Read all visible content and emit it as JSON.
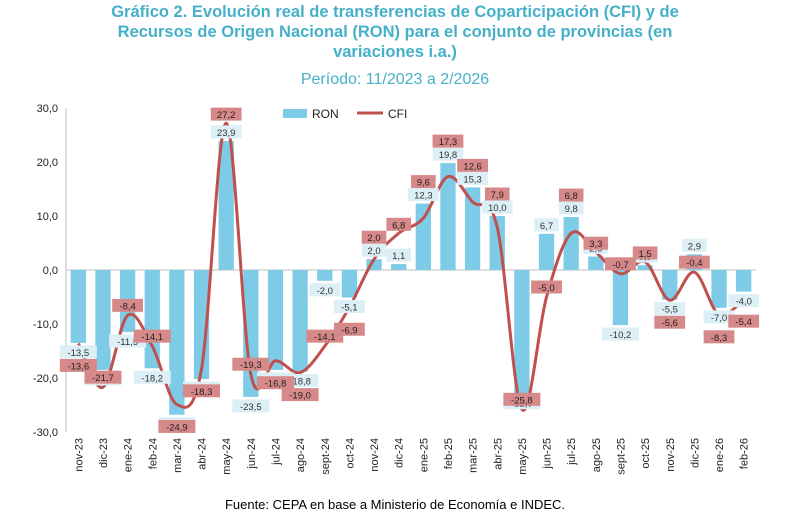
{
  "title_lines": [
    "Gráfico 2. Evolución real de transferencias de Coparticipación (CFI) y de",
    "Recursos de Origen Nacional (RON) para el conjunto de provincias (en",
    "variaciones i.a.)"
  ],
  "subtitle": "Período: 11/2023 a 2/2026",
  "source": "Fuente: CEPA en base a Ministerio de Economía e INDEC.",
  "colors": {
    "ron": "#7dcbe6",
    "cfi": "#c0504d",
    "title": "#45b0c8",
    "ron_label_bg": "#dcefF7",
    "cfi_label_bg": "#d7898a"
  },
  "chart_data": {
    "type": "bar",
    "categories": [
      "nov-23",
      "dic-23",
      "ene-24",
      "feb-24",
      "mar-24",
      "abr-24",
      "may-24",
      "jun-24",
      "jul-24",
      "ago-24",
      "sept-24",
      "oct-24",
      "nov-24",
      "dic-24",
      "ene-25",
      "feb-25",
      "mar-25",
      "abr-25",
      "may-25",
      "jun-25",
      "jul-25",
      "ago-25",
      "sept-25",
      "oct-25",
      "nov-25",
      "dic-25",
      "ene-26",
      "feb-26"
    ],
    "series": [
      {
        "name": "RON",
        "type": "bar",
        "values": [
          -13.5,
          -18.5,
          -11.5,
          -18.2,
          -26.8,
          -20.2,
          23.9,
          -23.5,
          -18.5,
          -18.8,
          -2.0,
          -5.1,
          2.0,
          1.1,
          12.3,
          19.8,
          15.3,
          10.0,
          -22.9,
          6.7,
          9.8,
          2.5,
          -10.2,
          0.9,
          -5.5,
          2.9,
          -7.0,
          -4.0
        ]
      },
      {
        "name": "CFI",
        "type": "line",
        "values": [
          -13.6,
          -21.7,
          -8.4,
          -14.1,
          -24.9,
          -18.3,
          27.2,
          -19.3,
          -16.8,
          -19.0,
          -14.1,
          -6.9,
          2.0,
          6.8,
          9.6,
          17.3,
          12.6,
          7.9,
          -25.8,
          -5.0,
          6.8,
          3.3,
          -0.7,
          1.5,
          -5.6,
          -0.4,
          -8.3,
          -5.4
        ]
      }
    ],
    "ron_labels": [
      "-13,5",
      "-18,5",
      "-11,5",
      "-18,2",
      "-26,8",
      "-20,2",
      "23,9",
      "-23,5",
      "-18,5",
      "-18,8",
      "-2,0",
      "-5,1",
      "2,0",
      "1,1",
      "12,3",
      "19,8",
      "15,3",
      "10,0",
      "-22,9",
      "6,7",
      "9,8",
      "2,5",
      "-10,2",
      "0,9",
      "-5,5",
      "2,9",
      "-7,0",
      "-4,0"
    ],
    "cfi_labels": [
      "-13,6",
      "-21,7",
      "-8,4",
      "-14,1",
      "-24,9",
      "-18,3",
      "27,2",
      "-19,3",
      "-16,8",
      "-19,0",
      "-14,1",
      "-6,9",
      "2,0",
      "6,8",
      "9,6",
      "17,3",
      "12,6",
      "7,9",
      "-25,8",
      "-5,0",
      "6,8",
      "3,3",
      "-0,7",
      "1,5",
      "-5,6",
      "-0,4",
      "-8,3",
      "-5,4"
    ],
    "yticks": [
      "30,0",
      "20,0",
      "10,0",
      "0,0",
      "-10,0",
      "-20,0",
      "-30,0"
    ],
    "ytick_values": [
      30,
      20,
      10,
      0,
      -10,
      -20,
      -30
    ],
    "ylim": [
      -30,
      30
    ],
    "legend": {
      "items": [
        "RON",
        "CFI"
      ],
      "position": "top"
    },
    "grid": false
  }
}
